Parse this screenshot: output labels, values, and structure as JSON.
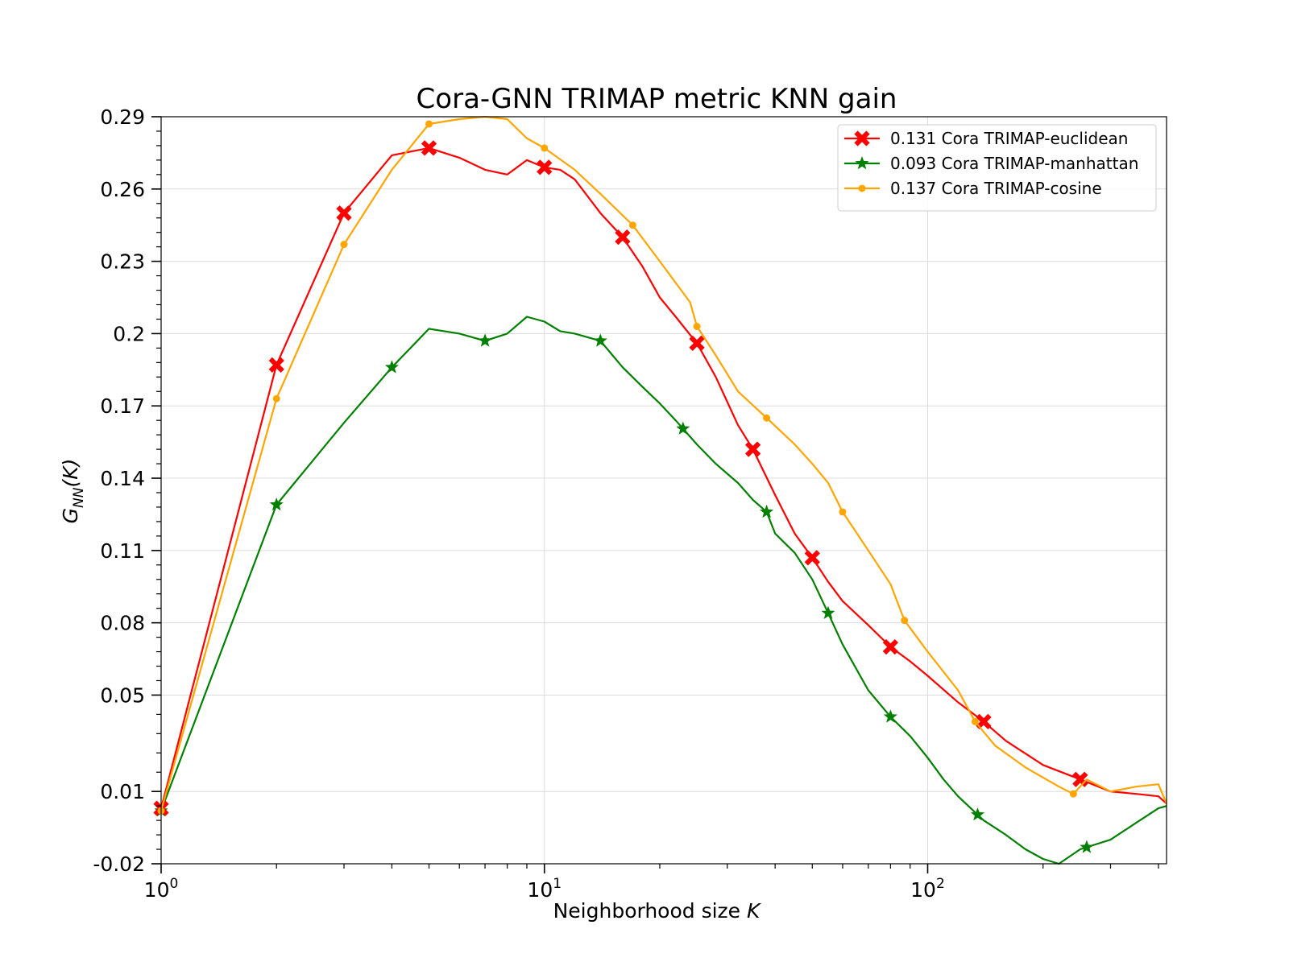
{
  "chart_data": {
    "type": "line",
    "title": "Cora-GNN TRIMAP metric KNN gain",
    "xlabel_text": "Neighborhood size",
    "xlabel_var": "K",
    "ylabel_main": "G",
    "ylabel_sub": "NN",
    "ylabel_arg": "(K)",
    "x_scale": "log",
    "xlim": [
      1,
      420
    ],
    "ylim": [
      -0.02,
      0.29
    ],
    "x_ticks": [
      {
        "value": 1,
        "base": "10",
        "exp": "0"
      },
      {
        "value": 10,
        "base": "10",
        "exp": "1"
      },
      {
        "value": 100,
        "base": "10",
        "exp": "2"
      }
    ],
    "y_ticks": [
      -0.02,
      0.01,
      0.05,
      0.08,
      0.11,
      0.14,
      0.17,
      0.2,
      0.23,
      0.26,
      0.29
    ],
    "y_tick_labels": [
      "-0.02",
      "0.01",
      "0.05",
      "0.08",
      "0.11",
      "0.14",
      "0.17",
      "0.2",
      "0.23",
      "0.26",
      "0.29"
    ],
    "grid": true,
    "legend_position": "top-right",
    "series": [
      {
        "name": "0.131 Cora TRIMAP-euclidean",
        "color": "#ff0000",
        "marker": "X",
        "x": [
          1,
          2,
          3,
          4,
          5,
          6,
          7,
          8,
          9,
          10,
          11,
          12,
          14,
          16,
          18,
          20,
          22,
          25,
          28,
          32,
          35,
          40,
          45,
          50,
          55,
          60,
          70,
          80,
          90,
          100,
          120,
          140,
          160,
          200,
          250,
          300,
          350,
          400,
          420
        ],
        "y": [
          0.003,
          0.187,
          0.25,
          0.274,
          0.277,
          0.273,
          0.268,
          0.266,
          0.272,
          0.269,
          0.268,
          0.264,
          0.25,
          0.24,
          0.228,
          0.215,
          0.207,
          0.196,
          0.182,
          0.162,
          0.152,
          0.133,
          0.117,
          0.107,
          0.097,
          0.089,
          0.079,
          0.07,
          0.064,
          0.058,
          0.047,
          0.039,
          0.031,
          0.021,
          0.015,
          0.01,
          0.009,
          0.008,
          0.005
        ],
        "marker_x": [
          1,
          2,
          3,
          5,
          10,
          16,
          25,
          35,
          50,
          80,
          140,
          250
        ]
      },
      {
        "name": "0.093 Cora TRIMAP-manhattan",
        "color": "#008000",
        "marker": "star",
        "x": [
          1,
          2,
          3,
          4,
          5,
          6,
          7,
          8,
          9,
          10,
          11,
          12,
          14,
          16,
          18,
          20,
          22,
          25,
          28,
          32,
          35,
          38,
          40,
          45,
          50,
          55,
          60,
          70,
          80,
          90,
          100,
          110,
          120,
          140,
          160,
          180,
          200,
          220,
          250,
          300,
          350,
          400,
          420
        ],
        "y": [
          0.002,
          0.129,
          0.163,
          0.186,
          0.202,
          0.2,
          0.197,
          0.2,
          0.207,
          0.205,
          0.201,
          0.2,
          0.197,
          0.186,
          0.178,
          0.171,
          0.164,
          0.154,
          0.146,
          0.138,
          0.131,
          0.126,
          0.117,
          0.109,
          0.098,
          0.084,
          0.071,
          0.052,
          0.041,
          0.033,
          0.024,
          0.015,
          0.008,
          -0.002,
          -0.008,
          -0.014,
          -0.018,
          -0.02,
          -0.014,
          -0.01,
          -0.003,
          0.003,
          0.004
        ],
        "marker_x": [
          1,
          2,
          4,
          7,
          14,
          23,
          38,
          55,
          80,
          135,
          260
        ]
      },
      {
        "name": "0.137 Cora TRIMAP-cosine",
        "color": "#ffa500",
        "marker": "dot",
        "x": [
          1,
          2,
          3,
          4,
          5,
          6,
          7,
          8,
          9,
          10,
          12,
          14,
          17,
          20,
          24,
          25,
          28,
          32,
          38,
          45,
          50,
          55,
          60,
          70,
          80,
          87,
          100,
          120,
          133,
          150,
          180,
          220,
          240,
          260,
          300,
          350,
          400,
          420
        ],
        "y": [
          0.002,
          0.173,
          0.237,
          0.268,
          0.287,
          0.289,
          0.29,
          0.289,
          0.281,
          0.277,
          0.268,
          0.258,
          0.245,
          0.23,
          0.213,
          0.203,
          0.191,
          0.176,
          0.165,
          0.154,
          0.146,
          0.138,
          0.126,
          0.11,
          0.096,
          0.081,
          0.068,
          0.052,
          0.039,
          0.029,
          0.02,
          0.012,
          0.009,
          0.015,
          0.01,
          0.012,
          0.013,
          0.005
        ],
        "marker_x": [
          1,
          2,
          3,
          5,
          10,
          17,
          25,
          38,
          60,
          87,
          133,
          240
        ]
      }
    ]
  }
}
